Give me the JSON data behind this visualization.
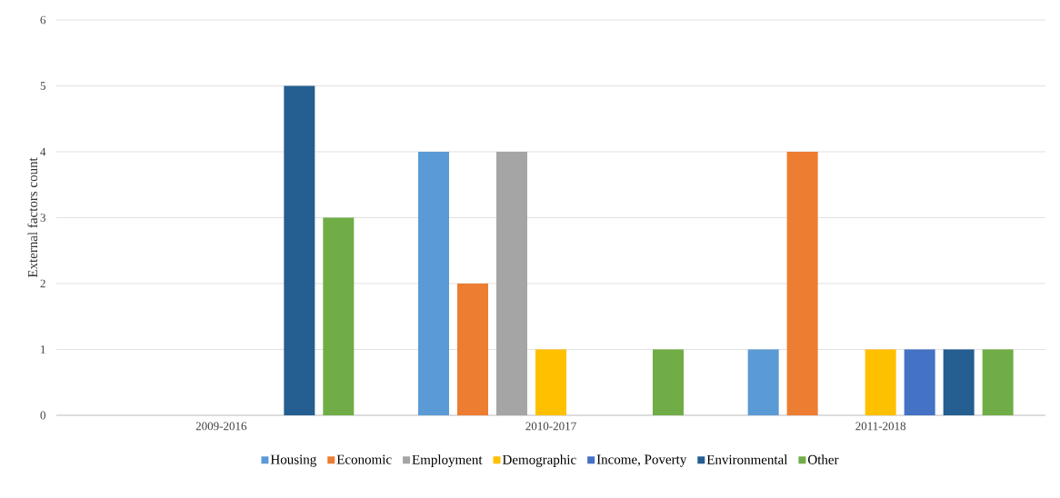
{
  "chart_data": {
    "type": "bar",
    "ylabel": "External factors count",
    "categories": [
      "2009-2016",
      "2010-2017",
      "2011-2018"
    ],
    "series": [
      {
        "name": "Housing",
        "color": "#5b9bd5",
        "values": [
          0,
          4,
          1
        ]
      },
      {
        "name": "Economic",
        "color": "#ed7d31",
        "values": [
          0,
          2,
          4
        ]
      },
      {
        "name": "Employment",
        "color": "#a5a5a5",
        "values": [
          0,
          4,
          0
        ]
      },
      {
        "name": "Demographic",
        "color": "#ffc000",
        "values": [
          0,
          1,
          1
        ]
      },
      {
        "name": "Income, Poverty",
        "color": "#4472c4",
        "values": [
          0,
          0,
          1
        ]
      },
      {
        "name": "Environmental",
        "color": "#255e91",
        "values": [
          5,
          0,
          1
        ]
      },
      {
        "name": "Other",
        "color": "#70ad47",
        "values": [
          3,
          1,
          1
        ]
      }
    ],
    "ylim": [
      0,
      6
    ],
    "yticks": [
      0,
      1,
      2,
      3,
      4,
      5,
      6
    ],
    "grid": "y",
    "legend": "bottom"
  }
}
